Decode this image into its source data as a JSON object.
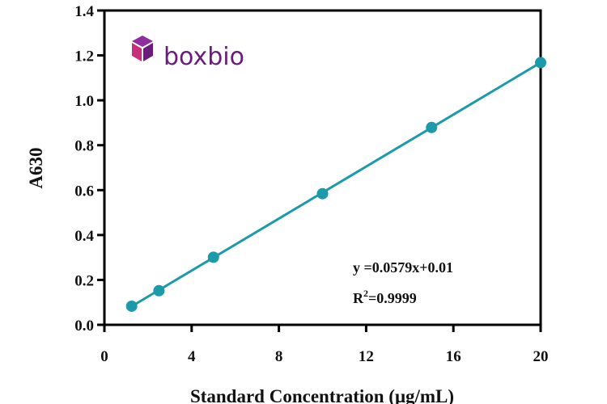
{
  "chart_data": {
    "type": "scatter",
    "xlabel": "Standard Concentration (μg/mL)",
    "ylabel": "A630",
    "xlim": [
      0,
      20
    ],
    "ylim": [
      0,
      1.4
    ],
    "xticks": [
      "0",
      "4",
      "8",
      "12",
      "16",
      "20"
    ],
    "yticks": [
      "0.0",
      "0.2",
      "0.4",
      "0.6",
      "0.8",
      "1.0",
      "1.2",
      "1.4"
    ],
    "series": [
      {
        "x": [
          1.25,
          2.5,
          5,
          10,
          15,
          20
        ],
        "y": [
          0.083,
          0.152,
          0.301,
          0.584,
          0.879,
          1.168
        ]
      }
    ],
    "fit": {
      "slope": 0.0579,
      "intercept": 0.01,
      "x_range": [
        1.25,
        20
      ]
    },
    "equation": "y =0.0579x+0.01",
    "r2_prefix": "R",
    "r2_superscript": "2",
    "r2_value": "=0.9999",
    "grid": false,
    "colors": {
      "series": "#1b9aaa",
      "axis": "#000000"
    }
  },
  "brand": {
    "name": "boxbio",
    "color": "#6a1b7c"
  }
}
